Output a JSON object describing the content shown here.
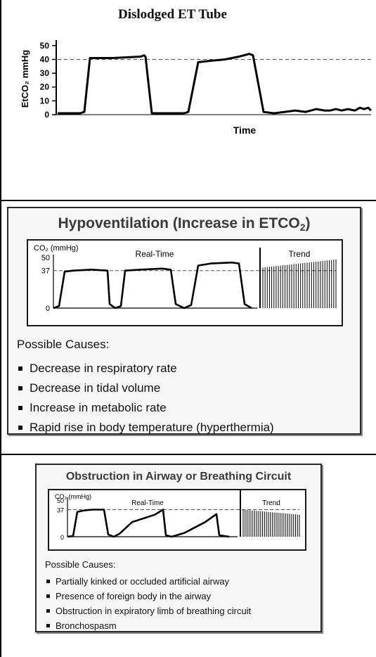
{
  "panels": {
    "p1": {
      "title": "Dislodged ET Tube",
      "ylabel": "EtCO₂ mmHg",
      "xlabel": "Time"
    },
    "p2": {
      "title": "Hypoventilation (Increase in ETCO",
      "title_sub": "2",
      "title_end": ")",
      "co2_label": "CO₂ (mmHg)",
      "realtime_label": "Real-Time",
      "trend_label": "Trend",
      "causes_heading": "Possible Causes:",
      "causes": [
        "Decrease in respiratory rate",
        "Decrease in tidal volume",
        "Increase in metabolic rate",
        "Rapid rise in body temperature (hyperthermia)"
      ]
    },
    "p3": {
      "title": "Obstruction in Airway or Breathing Circuit",
      "co2_label": "CO₂ (mmHg)",
      "realtime_label": "Real-Time",
      "trend_label": "Trend",
      "causes_heading": "Possible Causes:",
      "causes": [
        "Partially kinked or occluded artificial airway",
        "Presence of foreign body in the airway",
        "Obstruction in expiratory limb of breathing circuit",
        "Bronchospasm"
      ]
    }
  },
  "colors": {
    "trace": "#000000",
    "reference": "#555555",
    "box_bg": "#f6f6f6"
  },
  "chart_data": [
    {
      "type": "line",
      "title": "Dislodged ET Tube",
      "xlabel": "Time",
      "ylabel": "EtCO₂ mmHg",
      "ylim": [
        0,
        55
      ],
      "yticks": [
        "50",
        "40",
        "30",
        "20",
        "10",
        "0"
      ],
      "reference_line": 40,
      "series": [
        {
          "values": [
            1,
            1,
            1,
            2,
            41,
            41,
            41.5,
            42,
            43,
            42,
            1,
            1,
            1,
            2,
            38,
            39,
            40,
            42,
            44,
            43,
            2,
            1,
            2,
            3,
            2,
            4,
            3,
            3,
            4,
            3,
            4,
            3,
            5,
            4,
            5,
            3
          ]
        }
      ]
    },
    {
      "type": "line",
      "title": "Hypoventilation (Increase in ETCO2)",
      "ylabel": "CO₂ (mmHg)",
      "ylim": [
        0,
        50
      ],
      "yticks": [
        "50",
        "37",
        "0"
      ],
      "reference_line": 37,
      "series": [
        {
          "values": [
            0,
            2,
            36,
            37,
            38,
            37,
            4,
            0,
            2,
            37,
            38,
            39,
            38,
            4,
            0,
            3,
            42,
            44,
            45,
            44,
            4,
            0
          ]
        }
      ],
      "trend": {
        "start": 40,
        "end": 48
      }
    },
    {
      "type": "line",
      "title": "Obstruction in Airway or Breathing Circuit",
      "ylabel": "CO₂ (mmHg)",
      "ylim": [
        0,
        50
      ],
      "yticks": [
        "50",
        "37",
        "0"
      ],
      "reference_line": 37,
      "series": [
        {
          "values": [
            0,
            1,
            34,
            36,
            37,
            37,
            3,
            0,
            4,
            20,
            30,
            37,
            2,
            0,
            5,
            20,
            31,
            2,
            0
          ]
        }
      ],
      "trend": {
        "start": 37,
        "end": 30
      }
    }
  ]
}
